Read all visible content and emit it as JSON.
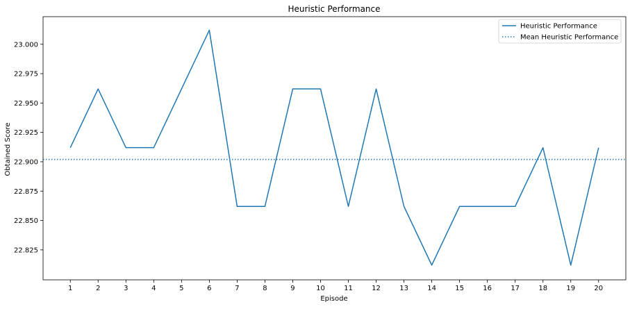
{
  "chart_data": {
    "type": "line",
    "title": "Heuristic Performance",
    "xlabel": "Episode",
    "ylabel": "Obtained Score",
    "x": [
      1,
      2,
      3,
      4,
      5,
      6,
      7,
      8,
      9,
      10,
      11,
      12,
      13,
      14,
      15,
      16,
      17,
      18,
      19,
      20
    ],
    "x_ticks": [
      "1",
      "2",
      "3",
      "4",
      "5",
      "6",
      "7",
      "8",
      "9",
      "10",
      "11",
      "12",
      "13",
      "14",
      "15",
      "16",
      "17",
      "18",
      "19",
      "20"
    ],
    "y_ticks": [
      "22.825",
      "22.850",
      "22.875",
      "22.900",
      "22.925",
      "22.950",
      "22.975",
      "23.000"
    ],
    "y_tick_values": [
      22.825,
      22.85,
      22.875,
      22.9,
      22.925,
      22.95,
      22.975,
      23.0
    ],
    "xlim": [
      0.02,
      20.98
    ],
    "ylim": [
      22.7995,
      23.0235
    ],
    "grid": false,
    "legend_position": "top-right",
    "series": [
      {
        "name": "Heuristic Performance",
        "style": "solid",
        "color": "#1f77b4",
        "values": [
          22.912,
          22.962,
          22.912,
          22.912,
          22.962,
          23.012,
          22.862,
          22.862,
          22.962,
          22.962,
          22.862,
          22.962,
          22.862,
          22.812,
          22.862,
          22.862,
          22.862,
          22.912,
          22.812,
          22.912
        ]
      },
      {
        "name": "Mean Heuristic Performance",
        "style": "dotted",
        "color": "#1f77b4",
        "value": 22.902
      }
    ]
  }
}
